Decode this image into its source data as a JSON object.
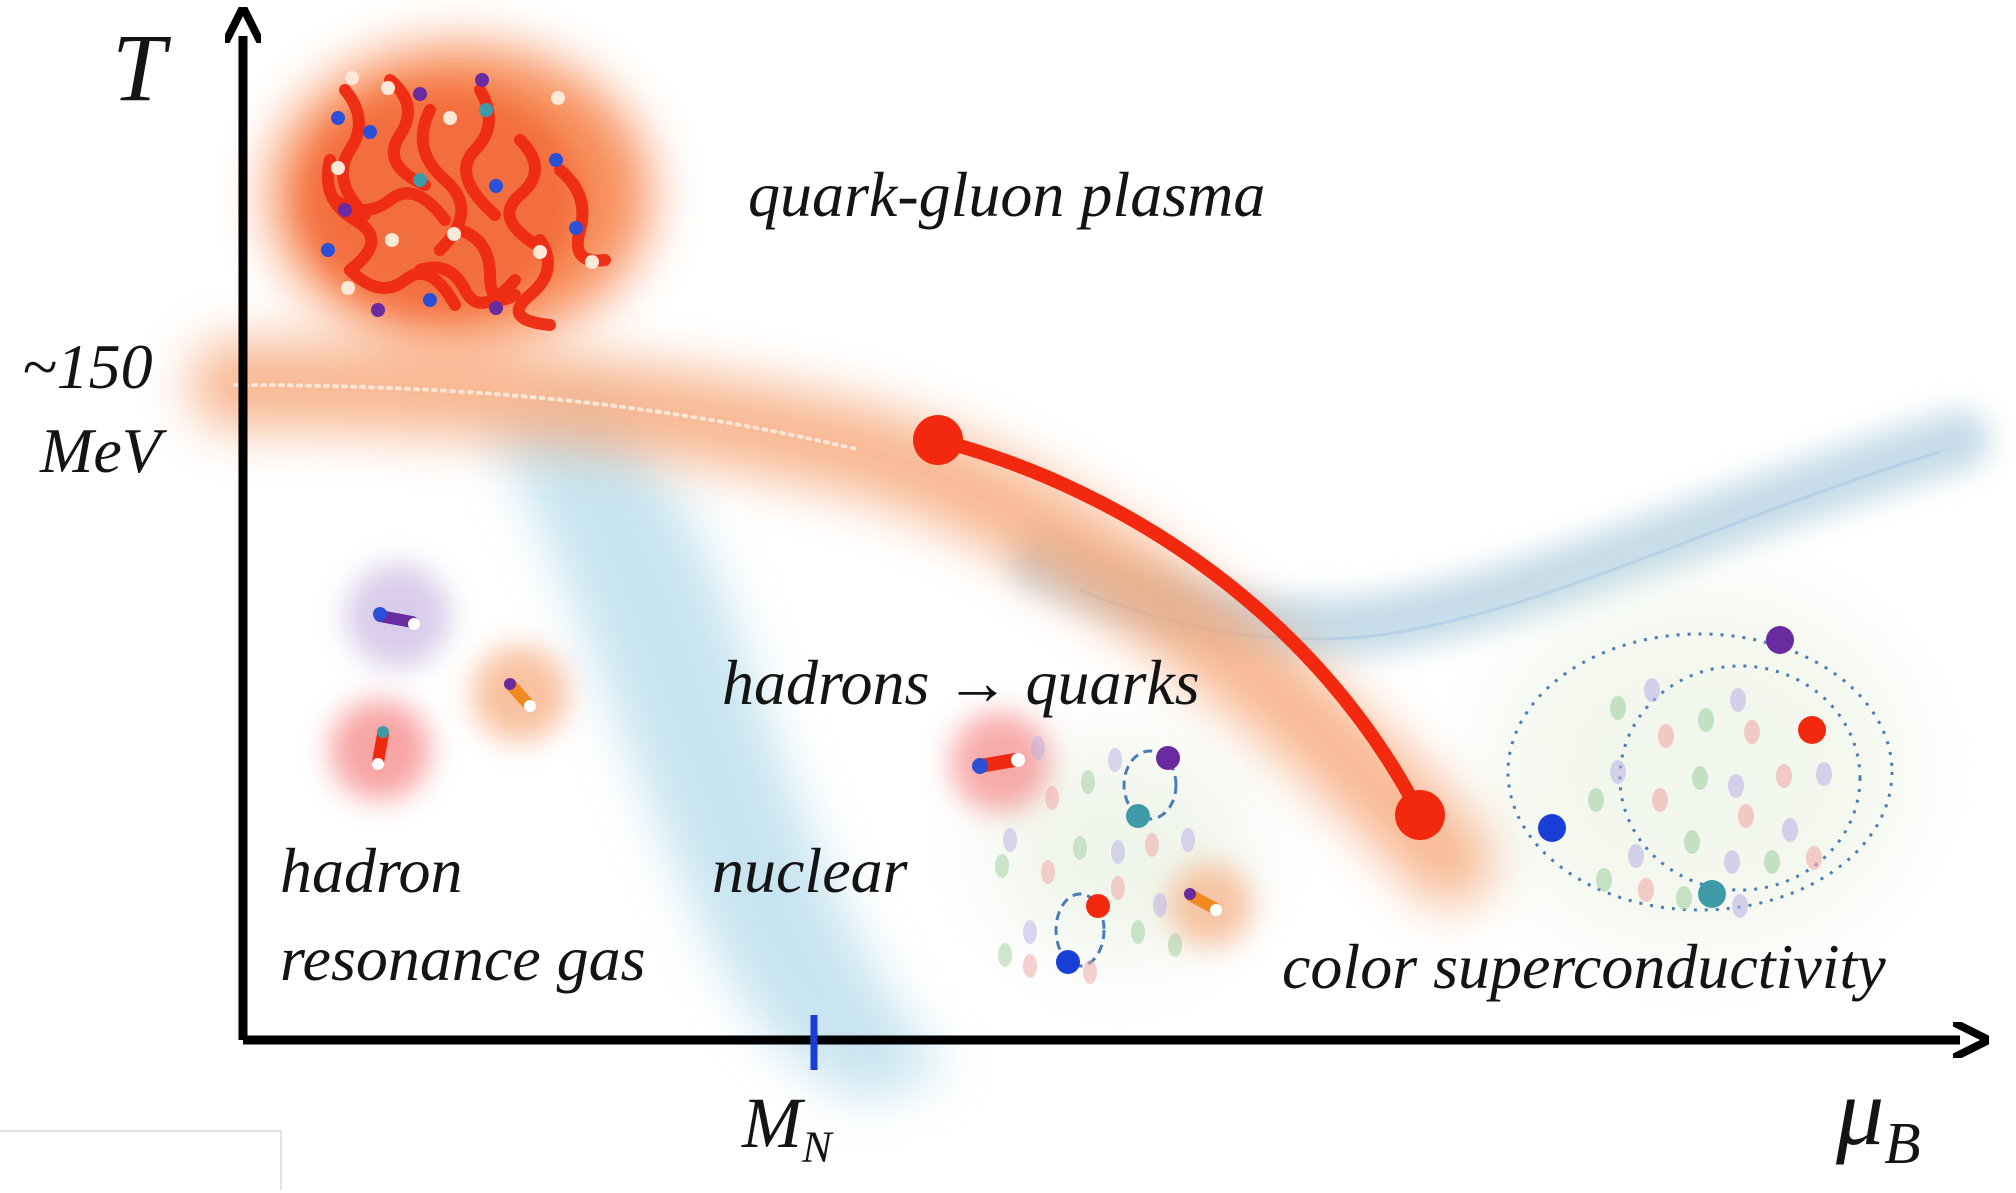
{
  "diagram": {
    "axes": {
      "y_label": "T",
      "x_label_main": "μ",
      "x_label_sub": "B",
      "y_tick_value": "~150",
      "y_tick_unit": "MeV",
      "x_tick_main": "M",
      "x_tick_sub": "N"
    },
    "regions": {
      "qgp": "quark-gluon plasma",
      "hadron_line1": "hadron",
      "hadron_line2": "resonance gas",
      "nuclear": "nuclear",
      "transition": "hadrons → quarks",
      "csc": "color superconductivity"
    },
    "colors": {
      "axis": "#000000",
      "critical_line": "#f2290f",
      "crossover_band": "#f5a070",
      "nuclear_band": "#b6dcec",
      "csc_band": "#bcd6e4",
      "mn_tick": "#1a3fd8"
    }
  }
}
